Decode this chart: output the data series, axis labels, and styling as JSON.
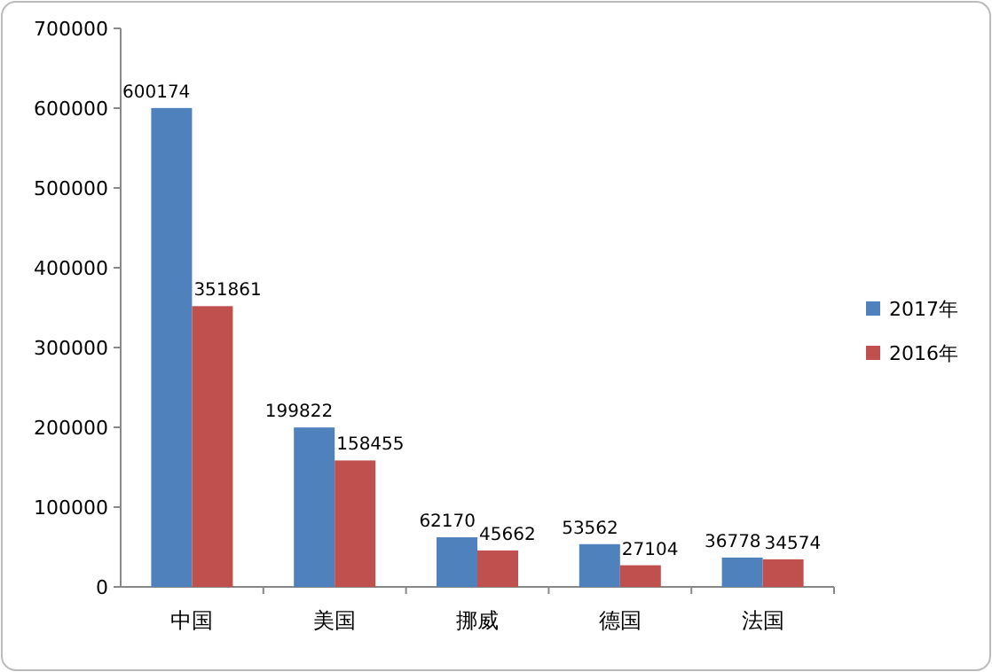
{
  "chart_data": {
    "type": "bar",
    "categories": [
      "中国",
      "美国",
      "挪威",
      "德国",
      "法国"
    ],
    "series": [
      {
        "name": "2017年",
        "color": "#4f81bd",
        "values": [
          600174,
          199822,
          62170,
          53562,
          36778
        ]
      },
      {
        "name": "2016年",
        "color": "#c0504d",
        "values": [
          351861,
          158455,
          45662,
          27104,
          34574
        ]
      }
    ],
    "ylim": [
      0,
      700000
    ],
    "yticks": [
      0,
      100000,
      200000,
      300000,
      400000,
      500000,
      600000,
      700000
    ],
    "data_labels": true,
    "legend": "right",
    "grid": false
  }
}
